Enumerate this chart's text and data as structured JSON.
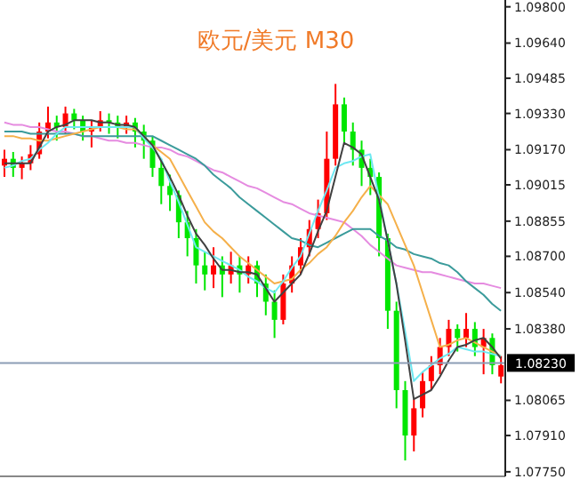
{
  "chart_data": {
    "type": "candlestick",
    "title": "欧元/美元 M30",
    "categories": [
      null,
      null,
      null,
      null,
      null,
      null,
      null,
      null,
      null,
      null,
      null,
      null,
      null,
      null,
      null,
      null,
      null,
      null,
      null,
      null,
      null,
      null,
      null,
      null,
      null,
      null,
      null,
      null,
      null,
      null,
      null,
      null,
      null,
      null,
      null,
      null,
      null,
      null,
      null,
      null,
      null,
      null,
      null,
      null,
      null,
      null,
      null,
      null,
      null,
      null,
      null,
      null,
      null,
      null,
      null,
      null,
      null,
      null
    ],
    "ylim": [
      1.0773,
      1.0983
    ],
    "yticks": [
      {
        "value": 1.098,
        "label": "1.09800"
      },
      {
        "value": 1.0964,
        "label": "1.09640"
      },
      {
        "value": 1.09485,
        "label": "1.09485"
      },
      {
        "value": 1.0933,
        "label": "1.09330"
      },
      {
        "value": 1.0917,
        "label": "1.09170"
      },
      {
        "value": 1.09015,
        "label": "1.09015"
      },
      {
        "value": 1.08855,
        "label": "1.08855"
      },
      {
        "value": 1.087,
        "label": "1.08700"
      },
      {
        "value": 1.0854,
        "label": "1.08540"
      },
      {
        "value": 1.0838,
        "label": "1.08380"
      },
      {
        "value": 1.08065,
        "label": "1.08065"
      },
      {
        "value": 1.0791,
        "label": "1.07910"
      },
      {
        "value": 1.0775,
        "label": "1.07750"
      }
    ],
    "tick_labels": "y",
    "ref_lines": [
      {
        "axis": "y",
        "value": 1.0823,
        "label": "1.08230",
        "color": "#8c9db5"
      }
    ],
    "series": [
      {
        "ohlc": [
          [
            1.091,
            1.0917,
            1.0905,
            1.0913
          ],
          [
            1.0913,
            1.0916,
            1.0905,
            1.0909
          ],
          [
            1.0909,
            1.0914,
            1.0904,
            1.0911
          ],
          [
            1.0911,
            1.0919,
            1.0908,
            1.0915
          ],
          [
            1.0915,
            1.0929,
            1.0913,
            1.0925
          ],
          [
            1.0925,
            1.0936,
            1.0922,
            1.0929
          ],
          [
            1.0929,
            1.0932,
            1.0921,
            1.0927
          ],
          [
            1.0927,
            1.0936,
            1.0924,
            1.0933
          ],
          [
            1.0933,
            1.0935,
            1.0926,
            1.093
          ],
          [
            1.093,
            1.0932,
            1.0921,
            1.0925
          ],
          [
            1.0925,
            1.093,
            1.0918,
            1.0927
          ],
          [
            1.0927,
            1.0934,
            1.0925,
            1.093
          ],
          [
            1.093,
            1.0933,
            1.0924,
            1.0929
          ],
          [
            1.0929,
            1.0932,
            1.0922,
            1.0927
          ],
          [
            1.0927,
            1.0932,
            1.0924,
            1.0929
          ],
          [
            1.0929,
            1.0931,
            1.0918,
            1.0925
          ],
          [
            1.0925,
            1.0928,
            1.0913,
            1.0921
          ],
          [
            1.0921,
            1.0923,
            1.0905,
            1.0909
          ],
          [
            1.0909,
            1.0913,
            1.0893,
            1.0901
          ],
          [
            1.0901,
            1.0906,
            1.089,
            1.0897
          ],
          [
            1.0897,
            1.0899,
            1.0878,
            1.0885
          ],
          [
            1.0885,
            1.089,
            1.087,
            1.0878
          ],
          [
            1.0878,
            1.0882,
            1.0858,
            1.0866
          ],
          [
            1.0866,
            1.0872,
            1.0855,
            1.0862
          ],
          [
            1.0862,
            1.0874,
            1.0856,
            1.0866
          ],
          [
            1.0866,
            1.087,
            1.0852,
            1.0862
          ],
          [
            1.0862,
            1.0872,
            1.0858,
            1.0866
          ],
          [
            1.0866,
            1.087,
            1.0854,
            1.0862
          ],
          [
            1.0862,
            1.087,
            1.0858,
            1.0866
          ],
          [
            1.0866,
            1.0868,
            1.0852,
            1.0858
          ],
          [
            1.0858,
            1.0862,
            1.0844,
            1.085
          ],
          [
            1.085,
            1.0855,
            1.0834,
            1.0842
          ],
          [
            1.0842,
            1.0862,
            1.084,
            1.0858
          ],
          [
            1.0858,
            1.087,
            1.0854,
            1.0866
          ],
          [
            1.0866,
            1.0878,
            1.0862,
            1.0874
          ],
          [
            1.0874,
            1.0886,
            1.087,
            1.0882
          ],
          [
            1.0882,
            1.0895,
            1.0878,
            1.0889
          ],
          [
            1.0889,
            1.0925,
            1.0886,
            1.0913
          ],
          [
            1.0913,
            1.0946,
            1.091,
            1.0937
          ],
          [
            1.0937,
            1.094,
            1.092,
            1.0925
          ],
          [
            1.0925,
            1.0929,
            1.091,
            1.0917
          ],
          [
            1.0917,
            1.0921,
            1.0901,
            1.0909
          ],
          [
            1.0909,
            1.0913,
            1.0897,
            1.0905
          ],
          [
            1.0905,
            1.0907,
            1.087,
            1.0878
          ],
          [
            1.0878,
            1.088,
            1.0838,
            1.0846
          ],
          [
            1.0846,
            1.085,
            1.0803,
            1.0811
          ],
          [
            1.0811,
            1.0815,
            1.078,
            1.0791
          ],
          [
            1.0791,
            1.0807,
            1.0784,
            1.0803
          ],
          [
            1.0803,
            1.0819,
            1.0799,
            1.0815
          ],
          [
            1.0815,
            1.0826,
            1.0811,
            1.0822
          ],
          [
            1.0822,
            1.0834,
            1.0818,
            1.083
          ],
          [
            1.083,
            1.0842,
            1.0826,
            1.0838
          ],
          [
            1.0838,
            1.084,
            1.0828,
            1.0834
          ],
          [
            1.0834,
            1.0845,
            1.083,
            1.0838
          ],
          [
            1.0838,
            1.0841,
            1.0826,
            1.083
          ],
          [
            1.083,
            1.0838,
            1.0818,
            1.0834
          ],
          [
            1.0834,
            1.0836,
            1.0818,
            1.0822
          ],
          [
            1.0817,
            1.0826,
            1.0814,
            1.0822
          ]
        ],
        "colors": [
          "#ff0000",
          "#00e600",
          "#ff0000",
          "#ff0000",
          "#ff0000",
          "#ff0000",
          "#00e600",
          "#ff0000",
          "#00e600",
          "#00e600",
          "#ff0000",
          "#ff0000",
          "#00e600",
          "#00e600",
          "#ff0000",
          "#00e600",
          "#00e600",
          "#00e600",
          "#00e600",
          "#00e600",
          "#00e600",
          "#00e600",
          "#00e600",
          "#00e600",
          "#ff0000",
          "#00e600",
          "#ff0000",
          "#00e600",
          "#ff0000",
          "#00e600",
          "#00e600",
          "#00e600",
          "#ff0000",
          "#ff0000",
          "#ff0000",
          "#ff0000",
          "#ff0000",
          "#ff0000",
          "#ff0000",
          "#00e600",
          "#00e600",
          "#00e600",
          "#00e600",
          "#00e600",
          "#00e600",
          "#00e600",
          "#00e600",
          "#ff0000",
          "#ff0000",
          "#ff0000",
          "#ff0000",
          "#ff0000",
          "#00e600",
          "#ff0000",
          "#00e600",
          "#ff0000",
          "#00e600",
          "#ff0000"
        ]
      },
      {
        "type": "line",
        "color": "#e58be0",
        "values": [
          1.0929,
          1.0928,
          1.0928,
          1.0927,
          1.0927,
          1.0926,
          1.0925,
          1.0925,
          1.0924,
          1.0923,
          1.0923,
          1.0922,
          1.0921,
          1.0921,
          1.092,
          1.092,
          1.0919,
          1.0918,
          1.0918,
          1.0917,
          1.0915,
          1.0914,
          1.0912,
          1.091,
          1.0908,
          1.0907,
          1.0905,
          1.0903,
          1.0901,
          1.09,
          1.0898,
          1.0896,
          1.0894,
          1.0893,
          1.0891,
          1.0889,
          1.0888,
          1.0887,
          1.0886,
          1.0885,
          1.0882,
          1.0879,
          1.0875,
          1.0872,
          1.0869,
          1.0866,
          1.0865,
          1.0864,
          1.0863,
          1.0863,
          1.0862,
          1.0861,
          1.086,
          1.0859,
          1.0858,
          1.0858,
          1.0857,
          1.0856
        ]
      },
      {
        "type": "line",
        "color": "#3b9b9b",
        "values": [
          1.0925,
          1.0925,
          1.0925,
          1.0924,
          1.0924,
          1.0924,
          1.0924,
          1.0924,
          1.0924,
          1.0923,
          1.0923,
          1.0923,
          1.0923,
          1.0923,
          1.0923,
          1.0923,
          1.0923,
          1.0923,
          1.0921,
          1.0919,
          1.0917,
          1.0915,
          1.0913,
          1.091,
          1.0906,
          1.0903,
          1.09,
          1.0896,
          1.0893,
          1.089,
          1.0887,
          1.0884,
          1.0881,
          1.0878,
          1.0877,
          1.0875,
          1.0874,
          1.0876,
          1.0878,
          1.088,
          1.0882,
          1.0882,
          1.0882,
          1.0879,
          1.0877,
          1.0874,
          1.0873,
          1.0871,
          1.087,
          1.0869,
          1.0867,
          1.0866,
          1.0863,
          1.0859,
          1.0856,
          1.0853,
          1.0849,
          1.0846
        ]
      },
      {
        "type": "line",
        "color": "#f5b04a",
        "values": [
          1.0923,
          1.0923,
          1.0922,
          1.0922,
          1.0921,
          1.0921,
          1.0922,
          1.0923,
          1.0924,
          1.0925,
          1.0926,
          1.0927,
          1.0927,
          1.0927,
          1.0926,
          1.0926,
          1.0923,
          1.0919,
          1.0916,
          1.0913,
          1.0906,
          1.0899,
          1.0892,
          1.0885,
          1.0881,
          1.0878,
          1.0874,
          1.087,
          1.0867,
          1.0864,
          1.0861,
          1.0858,
          1.0859,
          1.086,
          1.0864,
          1.0867,
          1.0871,
          1.0874,
          1.0879,
          1.0885,
          1.089,
          1.0896,
          1.0901,
          1.0897,
          1.0893,
          1.0884,
          1.0875,
          1.0866,
          1.0854,
          1.0842,
          1.083,
          1.0831,
          1.0833,
          1.0834,
          1.0832,
          1.083,
          1.0828,
          1.0826
        ]
      },
      {
        "type": "line",
        "color": "#6ee8f2",
        "values": [
          1.0909,
          1.091,
          1.0912,
          1.0913,
          1.0917,
          1.092,
          1.0924,
          1.0927,
          1.0927,
          1.0927,
          1.0927,
          1.0927,
          1.0927,
          1.0927,
          1.0927,
          1.0927,
          1.0922,
          1.0918,
          1.0913,
          1.0903,
          1.0894,
          1.0884,
          1.0874,
          1.0872,
          1.087,
          1.0868,
          1.0866,
          1.0864,
          1.0861,
          1.0859,
          1.0856,
          1.0854,
          1.0859,
          1.0865,
          1.087,
          1.088,
          1.089,
          1.0899,
          1.0909,
          1.0911,
          1.0912,
          1.0914,
          1.0915,
          1.0896,
          1.0877,
          1.0858,
          1.0837,
          1.0815,
          1.0819,
          1.0822,
          1.0825,
          1.0827,
          1.083,
          1.0829,
          1.0828,
          1.0828,
          1.0827,
          1.0826
        ]
      },
      {
        "type": "line",
        "color": "#404040",
        "values": [
          1.0911,
          1.0911,
          1.0911,
          1.0911,
          1.0918,
          1.0925,
          1.0927,
          1.0928,
          1.093,
          1.093,
          1.093,
          1.0929,
          1.0929,
          1.0928,
          1.0928,
          1.0927,
          1.0923,
          1.0919,
          1.0912,
          1.0905,
          1.0897,
          1.0888,
          1.088,
          1.0875,
          1.0869,
          1.0864,
          1.0864,
          1.0863,
          1.0863,
          1.0862,
          1.0856,
          1.085,
          1.0854,
          1.0858,
          1.0862,
          1.0871,
          1.0881,
          1.089,
          1.0905,
          1.092,
          1.0918,
          1.0915,
          1.0905,
          1.0895,
          1.0877,
          1.0858,
          1.0833,
          1.0807,
          1.0809,
          1.0811,
          1.0817,
          1.0824,
          1.083,
          1.0831,
          1.0833,
          1.0834,
          1.083,
          1.0825
        ]
      }
    ]
  }
}
